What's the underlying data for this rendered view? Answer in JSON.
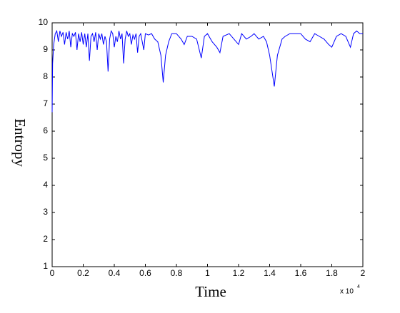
{
  "chart_data": {
    "type": "line",
    "xlabel": "Time",
    "ylabel": "Entropy",
    "x_multiplier": "x 10",
    "x_multiplier_exp": "4",
    "xlim": [
      0,
      2
    ],
    "xticks": [
      0,
      0.2,
      0.4,
      0.6,
      0.8,
      1,
      1.2,
      1.4,
      1.6,
      1.8,
      2
    ],
    "ylim": [
      1,
      10
    ],
    "yticks": [
      1,
      2,
      3,
      4,
      5,
      6,
      7,
      8,
      9,
      10
    ],
    "grid": false,
    "series": [
      {
        "color": "#0000ff",
        "x": [
          0,
          0.003,
          0.01,
          0.02,
          0.03,
          0.04,
          0.05,
          0.06,
          0.07,
          0.08,
          0.09,
          0.1,
          0.11,
          0.12,
          0.13,
          0.14,
          0.15,
          0.16,
          0.17,
          0.18,
          0.19,
          0.2,
          0.21,
          0.22,
          0.23,
          0.24,
          0.25,
          0.26,
          0.27,
          0.28,
          0.29,
          0.3,
          0.31,
          0.32,
          0.33,
          0.34,
          0.35,
          0.36,
          0.37,
          0.38,
          0.39,
          0.4,
          0.41,
          0.42,
          0.43,
          0.44,
          0.45,
          0.46,
          0.47,
          0.48,
          0.49,
          0.5,
          0.51,
          0.52,
          0.53,
          0.54,
          0.55,
          0.56,
          0.57,
          0.58,
          0.59,
          0.6,
          0.62,
          0.64,
          0.66,
          0.68,
          0.7,
          0.715,
          0.73,
          0.75,
          0.77,
          0.8,
          0.83,
          0.85,
          0.87,
          0.9,
          0.93,
          0.96,
          0.98,
          1.0,
          1.03,
          1.06,
          1.08,
          1.1,
          1.14,
          1.17,
          1.2,
          1.22,
          1.25,
          1.28,
          1.3,
          1.33,
          1.36,
          1.38,
          1.4,
          1.43,
          1.45,
          1.48,
          1.5,
          1.53,
          1.56,
          1.6,
          1.63,
          1.66,
          1.69,
          1.72,
          1.75,
          1.78,
          1.8,
          1.83,
          1.86,
          1.89,
          1.92,
          1.94,
          1.96,
          1.98,
          2.0
        ],
        "values": [
          6.7,
          8.5,
          9.2,
          9.6,
          9.7,
          9.3,
          9.7,
          9.5,
          9.65,
          9.2,
          9.65,
          9.4,
          9.7,
          9.1,
          9.6,
          9.5,
          9.65,
          9.0,
          9.6,
          9.3,
          9.65,
          9.2,
          9.6,
          9.1,
          9.6,
          8.6,
          9.5,
          9.6,
          9.3,
          9.65,
          9.0,
          9.6,
          9.4,
          9.6,
          9.2,
          9.5,
          9.3,
          8.2,
          9.4,
          9.7,
          9.6,
          9.1,
          9.5,
          9.3,
          9.7,
          9.4,
          9.6,
          8.5,
          9.4,
          9.7,
          9.5,
          9.6,
          9.2,
          9.55,
          9.4,
          9.6,
          8.9,
          9.5,
          9.6,
          9.3,
          9.0,
          9.6,
          9.55,
          9.6,
          9.4,
          9.3,
          8.8,
          7.8,
          8.8,
          9.3,
          9.6,
          9.6,
          9.4,
          9.2,
          9.5,
          9.5,
          9.4,
          8.7,
          9.5,
          9.6,
          9.3,
          9.1,
          8.9,
          9.5,
          9.6,
          9.4,
          9.2,
          9.6,
          9.4,
          9.5,
          9.6,
          9.4,
          9.5,
          9.3,
          8.8,
          7.65,
          8.8,
          9.4,
          9.5,
          9.6,
          9.6,
          9.6,
          9.4,
          9.3,
          9.6,
          9.5,
          9.4,
          9.2,
          9.1,
          9.5,
          9.6,
          9.5,
          9.1,
          9.6,
          9.7,
          9.6,
          9.6
        ]
      }
    ]
  }
}
